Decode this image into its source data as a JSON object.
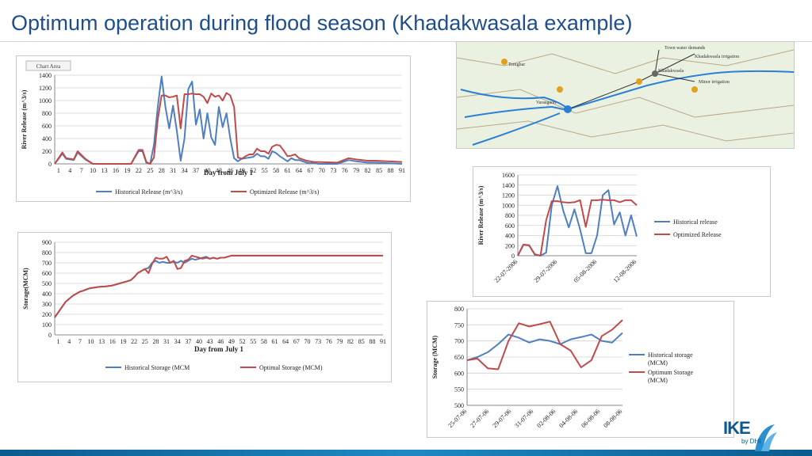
{
  "slide": {
    "title": "Optimum operation during flood season (Khadakwasala example)",
    "logo_text": "IKE",
    "logo_sub": "by DHI"
  },
  "map": {
    "labels": [
      "Temghar",
      "Varasgaon",
      "Khadakwasla",
      "Khadakwasla irrigation",
      "Town water demands",
      "Minor irrigation"
    ]
  },
  "chart_data": [
    {
      "id": "release_full",
      "type": "line",
      "badge": "Chart Area",
      "title": "",
      "xlabel": "Day from July 1",
      "ylabel": "River Release (m^3/s)",
      "ylim": [
        0,
        1400
      ],
      "yticks": [
        0,
        200,
        400,
        600,
        800,
        1000,
        1200,
        1400
      ],
      "xticks": [
        "1",
        "4",
        "7",
        "10",
        "13",
        "16",
        "19",
        "22",
        "25",
        "28",
        "31",
        "34",
        "37",
        "40",
        "43",
        "46",
        "49",
        "52",
        "55",
        "58",
        "61",
        "64",
        "67",
        "70",
        "73",
        "76",
        "79",
        "82",
        "85",
        "88",
        "91"
      ],
      "x_range": [
        1,
        92
      ],
      "series": [
        {
          "name": "Historical Release (m^3/s)",
          "color": "#4f7fbf",
          "x": [
            1,
            3,
            4,
            6,
            7,
            9,
            11,
            21,
            23,
            24,
            25,
            26,
            27,
            28,
            29,
            30,
            31,
            32,
            33,
            34,
            35,
            36,
            37,
            38,
            39,
            40,
            41,
            42,
            43,
            44,
            45,
            46,
            47,
            48,
            49,
            50,
            51,
            52,
            53,
            54,
            55,
            56,
            57,
            58,
            59,
            60,
            61,
            62,
            63,
            64,
            65,
            66,
            67,
            68,
            69,
            70,
            75,
            78,
            80,
            83,
            85,
            92
          ],
          "y": [
            0,
            160,
            80,
            60,
            180,
            70,
            0,
            0,
            200,
            200,
            20,
            0,
            300,
            900,
            1380,
            900,
            560,
            920,
            520,
            50,
            400,
            1180,
            1300,
            620,
            860,
            400,
            800,
            420,
            300,
            900,
            580,
            800,
            400,
            90,
            40,
            80,
            90,
            100,
            110,
            160,
            120,
            120,
            80,
            200,
            170,
            120,
            80,
            40,
            90,
            60,
            60,
            40,
            20,
            10,
            20,
            0,
            0,
            60,
            40,
            20,
            20,
            0
          ]
        },
        {
          "name": "Optimized Release (m^3/s)",
          "color": "#bf4b4b",
          "x": [
            1,
            3,
            4,
            6,
            7,
            9,
            11,
            21,
            23,
            24,
            25,
            26,
            27,
            28,
            29,
            30,
            31,
            32,
            33,
            34,
            35,
            36,
            37,
            38,
            39,
            40,
            41,
            42,
            43,
            44,
            45,
            46,
            47,
            48,
            49,
            50,
            51,
            52,
            53,
            54,
            55,
            56,
            57,
            58,
            59,
            60,
            61,
            62,
            63,
            64,
            65,
            66,
            67,
            68,
            69,
            70,
            75,
            78,
            80,
            83,
            85,
            92
          ],
          "y": [
            0,
            180,
            90,
            70,
            200,
            80,
            0,
            0,
            220,
            220,
            30,
            0,
            100,
            700,
            1080,
            1080,
            1050,
            1060,
            1080,
            560,
            1100,
            1100,
            1110,
            1100,
            1100,
            1060,
            960,
            1110,
            1060,
            1080,
            1000,
            1120,
            1080,
            900,
            100,
            80,
            120,
            150,
            150,
            240,
            200,
            200,
            160,
            270,
            300,
            290,
            210,
            120,
            130,
            150,
            90,
            70,
            50,
            40,
            30,
            30,
            20,
            90,
            70,
            50,
            50,
            30
          ]
        }
      ]
    },
    {
      "id": "storage_full",
      "type": "line",
      "title": "",
      "xlabel": "Day from July 1",
      "ylabel": "Storage(MCM)",
      "ylim": [
        0,
        900
      ],
      "yticks": [
        0,
        100,
        200,
        300,
        400,
        500,
        600,
        700,
        800,
        900
      ],
      "xticks": [
        "1",
        "4",
        "7",
        "10",
        "13",
        "16",
        "19",
        "22",
        "25",
        "28",
        "31",
        "34",
        "37",
        "40",
        "43",
        "46",
        "49",
        "52",
        "55",
        "58",
        "61",
        "64",
        "67",
        "70",
        "73",
        "76",
        "79",
        "82",
        "85",
        "88",
        "91"
      ],
      "x_range": [
        1,
        92
      ],
      "series": [
        {
          "name": "Historical Storage (MCM",
          "color": "#4f7fbf",
          "x": [
            1,
            2,
            3,
            4,
            5,
            6,
            7,
            8,
            9,
            10,
            11,
            12,
            13,
            14,
            15,
            16,
            17,
            18,
            19,
            20,
            21,
            22,
            23,
            24,
            25,
            26,
            27,
            28,
            29,
            30,
            31,
            32,
            33,
            34,
            35,
            36,
            37,
            38,
            39,
            40,
            41,
            42,
            43,
            44,
            45,
            46,
            47,
            48,
            49,
            50,
            55,
            60,
            65,
            70,
            75,
            80,
            85,
            92
          ],
          "y": [
            170,
            220,
            270,
            320,
            350,
            380,
            400,
            420,
            430,
            445,
            455,
            460,
            465,
            468,
            470,
            475,
            480,
            490,
            500,
            510,
            520,
            530,
            560,
            600,
            620,
            640,
            650,
            700,
            720,
            700,
            710,
            700,
            700,
            710,
            700,
            720,
            700,
            720,
            740,
            730,
            740,
            750,
            760,
            740,
            750,
            740,
            750,
            750,
            760,
            770,
            770,
            770,
            770,
            770,
            770,
            770,
            770,
            770
          ]
        },
        {
          "name": "Optimal Storage (MCM)",
          "color": "#bf4b4b",
          "x": [
            1,
            2,
            3,
            4,
            5,
            6,
            7,
            8,
            9,
            10,
            11,
            12,
            13,
            14,
            15,
            16,
            17,
            18,
            19,
            20,
            21,
            22,
            23,
            24,
            25,
            26,
            27,
            28,
            29,
            30,
            31,
            32,
            33,
            34,
            35,
            36,
            37,
            38,
            39,
            40,
            41,
            42,
            43,
            44,
            45,
            46,
            47,
            48,
            49,
            50,
            55,
            60,
            65,
            70,
            75,
            80,
            85,
            92
          ],
          "y": [
            170,
            220,
            270,
            320,
            350,
            380,
            400,
            420,
            430,
            445,
            455,
            460,
            465,
            468,
            470,
            475,
            480,
            490,
            500,
            510,
            520,
            530,
            560,
            600,
            620,
            640,
            600,
            690,
            750,
            740,
            740,
            760,
            700,
            720,
            640,
            650,
            720,
            730,
            770,
            760,
            750,
            740,
            750,
            740,
            750,
            740,
            750,
            750,
            760,
            770,
            770,
            770,
            770,
            770,
            770,
            770,
            770,
            770
          ]
        }
      ]
    },
    {
      "id": "release_zoom",
      "type": "line",
      "title": "",
      "xlabel": "",
      "ylabel": "River Release (m^3/s)",
      "ylim": [
        0,
        1600
      ],
      "yticks": [
        0,
        200,
        400,
        600,
        800,
        1000,
        1200,
        1400,
        1600
      ],
      "xticks": [
        "22-07-2006",
        "29-07-2006",
        "05-08-2006",
        "12-08-2006"
      ],
      "x_range": [
        0,
        21
      ],
      "series": [
        {
          "name": "Historical release",
          "color": "#4f7fbf",
          "x": [
            0,
            1,
            2,
            3,
            4,
            5,
            6,
            7,
            8,
            9,
            10,
            11,
            12,
            13,
            14,
            15,
            16,
            17,
            18,
            19,
            20,
            21
          ],
          "y": [
            0,
            220,
            210,
            20,
            0,
            60,
            1000,
            1380,
            900,
            560,
            920,
            520,
            50,
            50,
            400,
            1200,
            1300,
            620,
            860,
            400,
            800,
            380
          ]
        },
        {
          "name": "Optimized Release",
          "color": "#bf4b4b",
          "x": [
            0,
            1,
            2,
            3,
            4,
            5,
            6,
            7,
            8,
            9,
            10,
            11,
            12,
            13,
            14,
            15,
            16,
            17,
            18,
            19,
            20,
            21
          ],
          "y": [
            0,
            220,
            200,
            30,
            0,
            700,
            1080,
            1080,
            1060,
            1050,
            1060,
            1100,
            570,
            1100,
            1100,
            1110,
            1100,
            1100,
            1060,
            1100,
            1100,
            1000
          ]
        }
      ]
    },
    {
      "id": "storage_zoom",
      "type": "line",
      "title": "",
      "xlabel": "",
      "ylabel": "Storage (MCM)",
      "ylim": [
        500,
        800
      ],
      "yticks": [
        500,
        550,
        600,
        650,
        700,
        750,
        800
      ],
      "xticks": [
        "25-07-06",
        "27-07-06",
        "29-07-06",
        "31-07-06",
        "02-08-06",
        "04-08-06",
        "06-08-06",
        "08-08-06"
      ],
      "x_range": [
        0,
        15
      ],
      "series": [
        {
          "name": "Historical storage (MCM)",
          "color": "#4f7fbf",
          "x": [
            0,
            1,
            2,
            3,
            4,
            5,
            6,
            7,
            8,
            9,
            10,
            11,
            12,
            13,
            14,
            15
          ],
          "y": [
            640,
            650,
            665,
            690,
            720,
            710,
            695,
            705,
            700,
            690,
            705,
            712,
            720,
            700,
            695,
            725
          ]
        },
        {
          "name": "Optimum Storage (MCM)",
          "color": "#bf4b4b",
          "x": [
            0,
            1,
            2,
            3,
            4,
            5,
            6,
            7,
            8,
            9,
            10,
            11,
            12,
            13,
            14,
            15
          ],
          "y": [
            640,
            645,
            615,
            612,
            700,
            755,
            745,
            752,
            760,
            690,
            670,
            618,
            640,
            715,
            735,
            765
          ]
        }
      ]
    }
  ]
}
